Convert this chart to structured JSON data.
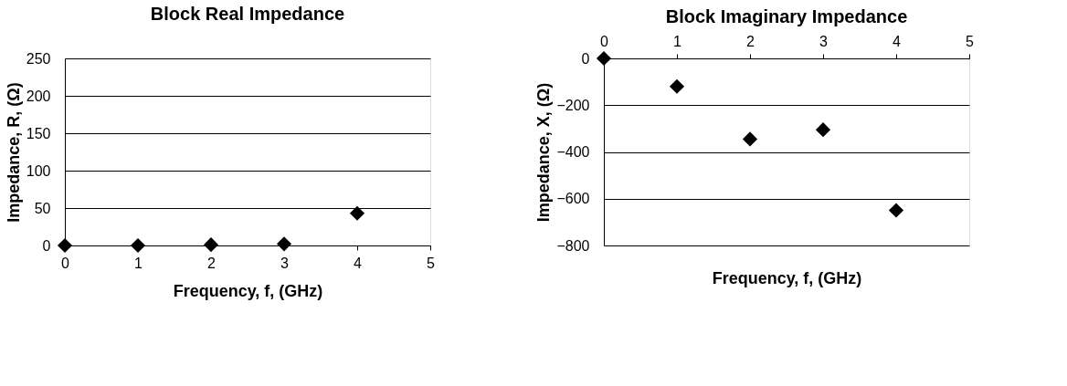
{
  "chart_data": [
    {
      "type": "scatter",
      "title": "Block Real Impedance",
      "xlabel": "Frequency, f, (GHz)",
      "ylabel": "Impedance, R, (Ω)",
      "x": [
        0,
        1,
        2,
        3,
        4
      ],
      "series": [
        {
          "color": "#000000",
          "values": [
            0,
            0,
            1,
            2,
            43
          ]
        }
      ],
      "xlim": [
        0,
        5
      ],
      "xticks": [
        0,
        1,
        2,
        3,
        4,
        5
      ],
      "ylim": [
        0,
        250
      ],
      "yticks": [
        0,
        50,
        100,
        150,
        200,
        250
      ],
      "grid": "y",
      "marker": "diamond"
    },
    {
      "type": "scatter",
      "title": "Block Imaginary Impedance",
      "xlabel": "Frequency, f, (GHz)",
      "ylabel": "Impedance, X, (Ω)",
      "x": [
        0,
        1,
        2,
        3,
        4
      ],
      "series": [
        {
          "color": "#000000",
          "values": [
            0,
            -120,
            -345,
            -305,
            -650
          ]
        }
      ],
      "xlim": [
        0,
        5
      ],
      "xticks": [
        0,
        1,
        2,
        3,
        4,
        5
      ],
      "ylim": [
        -800,
        0
      ],
      "yticks": [
        -800,
        -600,
        -400,
        -200,
        0
      ],
      "grid": "y",
      "marker": "diamond"
    }
  ]
}
